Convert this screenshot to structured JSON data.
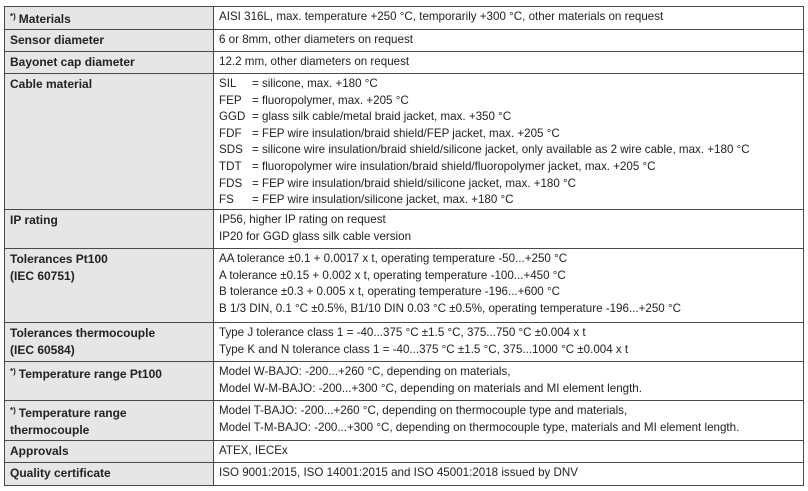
{
  "table": {
    "rows": [
      {
        "marker": "*)",
        "label": [
          "Materials"
        ],
        "lines": [
          "AISI 316L, max. temperature +250 °C, temporarily +300 °C, other materials on request"
        ]
      },
      {
        "label": [
          "Sensor diameter"
        ],
        "lines": [
          "6 or 8mm, other diameters on request"
        ]
      },
      {
        "label": [
          "Bayonet cap diameter"
        ],
        "lines": [
          "12.2 mm, other diameters on request"
        ]
      },
      {
        "label": [
          "Cable material"
        ],
        "items": [
          {
            "code": "SIL",
            "text": "= silicone, max.  +180 °C"
          },
          {
            "code": "FEP",
            "text": "= fluoropolymer, max.  +205 °C"
          },
          {
            "code": "GGD",
            "text": "= glass silk cable/metal braid jacket, max.  +350 °C"
          },
          {
            "code": "FDF",
            "text": "= FEP wire insulation/braid shield/FEP jacket, max.  +205 °C"
          },
          {
            "code": "SDS",
            "text": "= silicone wire insulation/braid shield/silicone jacket, only available as 2 wire cable, max.  +180 °C"
          },
          {
            "code": "TDT",
            "text": "= fluoropolymer wire insulation/braid shield/fluoropolymer jacket, max.  +205 °C"
          },
          {
            "code": "FDS",
            "text": "= FEP wire insulation/braid shield/silicone jacket, max.  +180 °C"
          },
          {
            "code": "FS",
            "text": "= FEP wire insulation/silicone jacket, max.  +180 °C"
          }
        ]
      },
      {
        "label": [
          "IP rating"
        ],
        "lines": [
          "IP56, higher IP rating on request",
          "IP20 for GGD glass silk cable version"
        ]
      },
      {
        "label": [
          "Tolerances Pt100",
          "(IEC 60751)"
        ],
        "lines": [
          "AA tolerance ±0.1 + 0.0017 x t, operating temperature -50...+250 °C",
          "A tolerance ±0.15 + 0.002 x t, operating temperature -100...+450 °C",
          "B tolerance ±0.3 + 0.005 x t, operating temperature -196...+600 °C",
          "B 1/3 DIN, 0.1 °C ±0.5%, B1/10 DIN 0.03 °C ±0.5%, operating temperature -196...+250 °C"
        ]
      },
      {
        "label": [
          "Tolerances thermocouple",
          "(IEC 60584)"
        ],
        "lines": [
          "Type J tolerance class 1 = -40...375 °C ±1.5 °C, 375...750 °C ±0.004 x t",
          "Type K and N tolerance class 1 = -40...375 °C ±1.5 °C, 375...1000 °C ±0.004 x t"
        ]
      },
      {
        "marker": "*)",
        "label": [
          "Temperature range Pt100"
        ],
        "lines": [
          "Model W-BAJO: -200...+260 °C, depending on materials,",
          "Model W-M-BAJO: -200...+300 °C, depending on materials and MI element length."
        ]
      },
      {
        "marker": "*)",
        "label": [
          "Temperature range",
          "thermocouple"
        ],
        "lines": [
          "Model T-BAJO: -200...+260 °C, depending on thermocouple type and materials,",
          "Model T-M-BAJO: -200...+300 °C, depending on thermocouple type, materials and MI element length."
        ]
      },
      {
        "label": [
          "Approvals"
        ],
        "lines": [
          "ATEX, IECEx"
        ]
      },
      {
        "label": [
          "Quality certificate"
        ],
        "lines": [
          "ISO 9001:2015, ISO 14001:2015 and ISO 45001:2018 issued by DNV"
        ]
      }
    ]
  }
}
